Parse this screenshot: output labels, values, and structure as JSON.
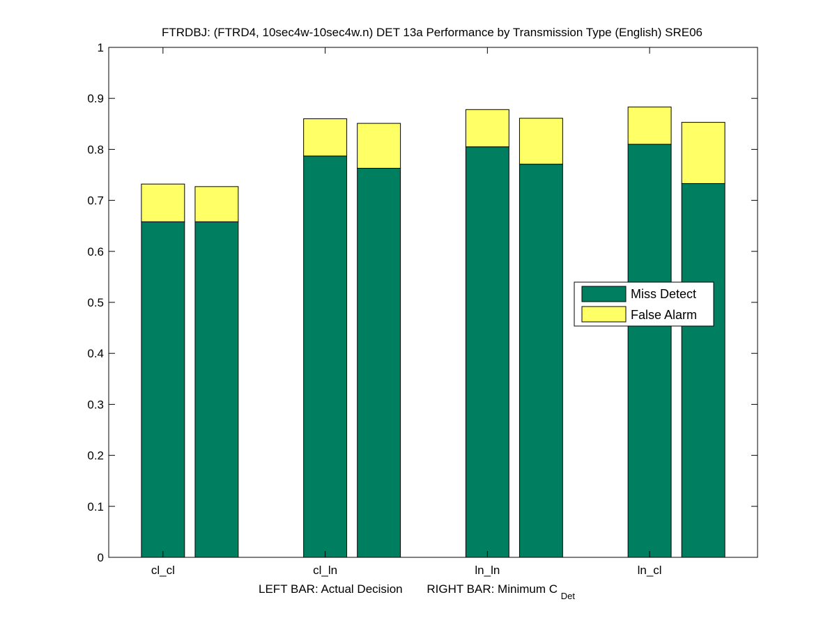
{
  "chart_data": {
    "type": "bar",
    "stacked": true,
    "title": "FTRDBJ: (FTRD4, 10sec4w-10sec4w.n) DET 13a Performance by Transmission Type (English) SRE06",
    "xlabel": {
      "left": "LEFT BAR: Actual Decision",
      "right": "RIGHT BAR: Minimum C",
      "right_subscript": "Det"
    },
    "ylabel": "",
    "ylim": [
      0,
      1
    ],
    "yticks": [
      "0",
      "0.1",
      "0.2",
      "0.3",
      "0.4",
      "0.5",
      "0.6",
      "0.7",
      "0.8",
      "0.9",
      "1"
    ],
    "categories": [
      "cl_cl",
      "cl_ln",
      "ln_ln",
      "ln_cl"
    ],
    "series": [
      {
        "name": "Miss Detect",
        "color": "#007f60",
        "left_values": [
          0.658,
          0.787,
          0.805,
          0.81
        ],
        "right_values": [
          0.658,
          0.763,
          0.771,
          0.733
        ]
      },
      {
        "name": "False Alarm",
        "color": "#ffff66",
        "left_values": [
          0.074,
          0.073,
          0.073,
          0.073
        ],
        "right_values": [
          0.069,
          0.088,
          0.09,
          0.12
        ]
      }
    ],
    "legend_position": "center-right",
    "grid": false
  }
}
